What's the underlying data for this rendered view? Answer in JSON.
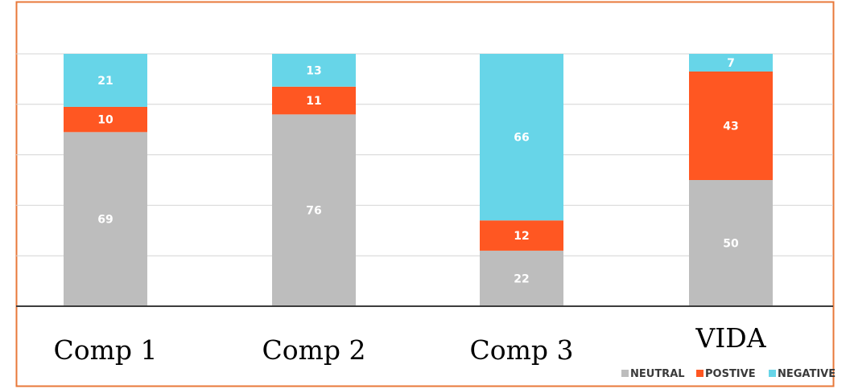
{
  "chart_data": {
    "type": "bar",
    "stacked": true,
    "normalized_percent": true,
    "categories": [
      "Comp 1",
      "Comp 2",
      "Comp 3",
      "VIDA"
    ],
    "series": [
      {
        "name": "NEUTRAL",
        "color": "#bdbdbd",
        "values": [
          69,
          76,
          22,
          50
        ]
      },
      {
        "name": "POSTIVE",
        "color": "#ff5722",
        "values": [
          10,
          11,
          12,
          43
        ]
      },
      {
        "name": "NEGATIVE",
        "color": "#67d5e8",
        "values": [
          21,
          13,
          66,
          7
        ]
      }
    ],
    "ylim": [
      0,
      100
    ],
    "grid": true,
    "legend_position": "bottom-right",
    "colors": {
      "frame": "#e8783a",
      "grid": "#d4d4d4",
      "axis": "#3c3c3c"
    }
  }
}
